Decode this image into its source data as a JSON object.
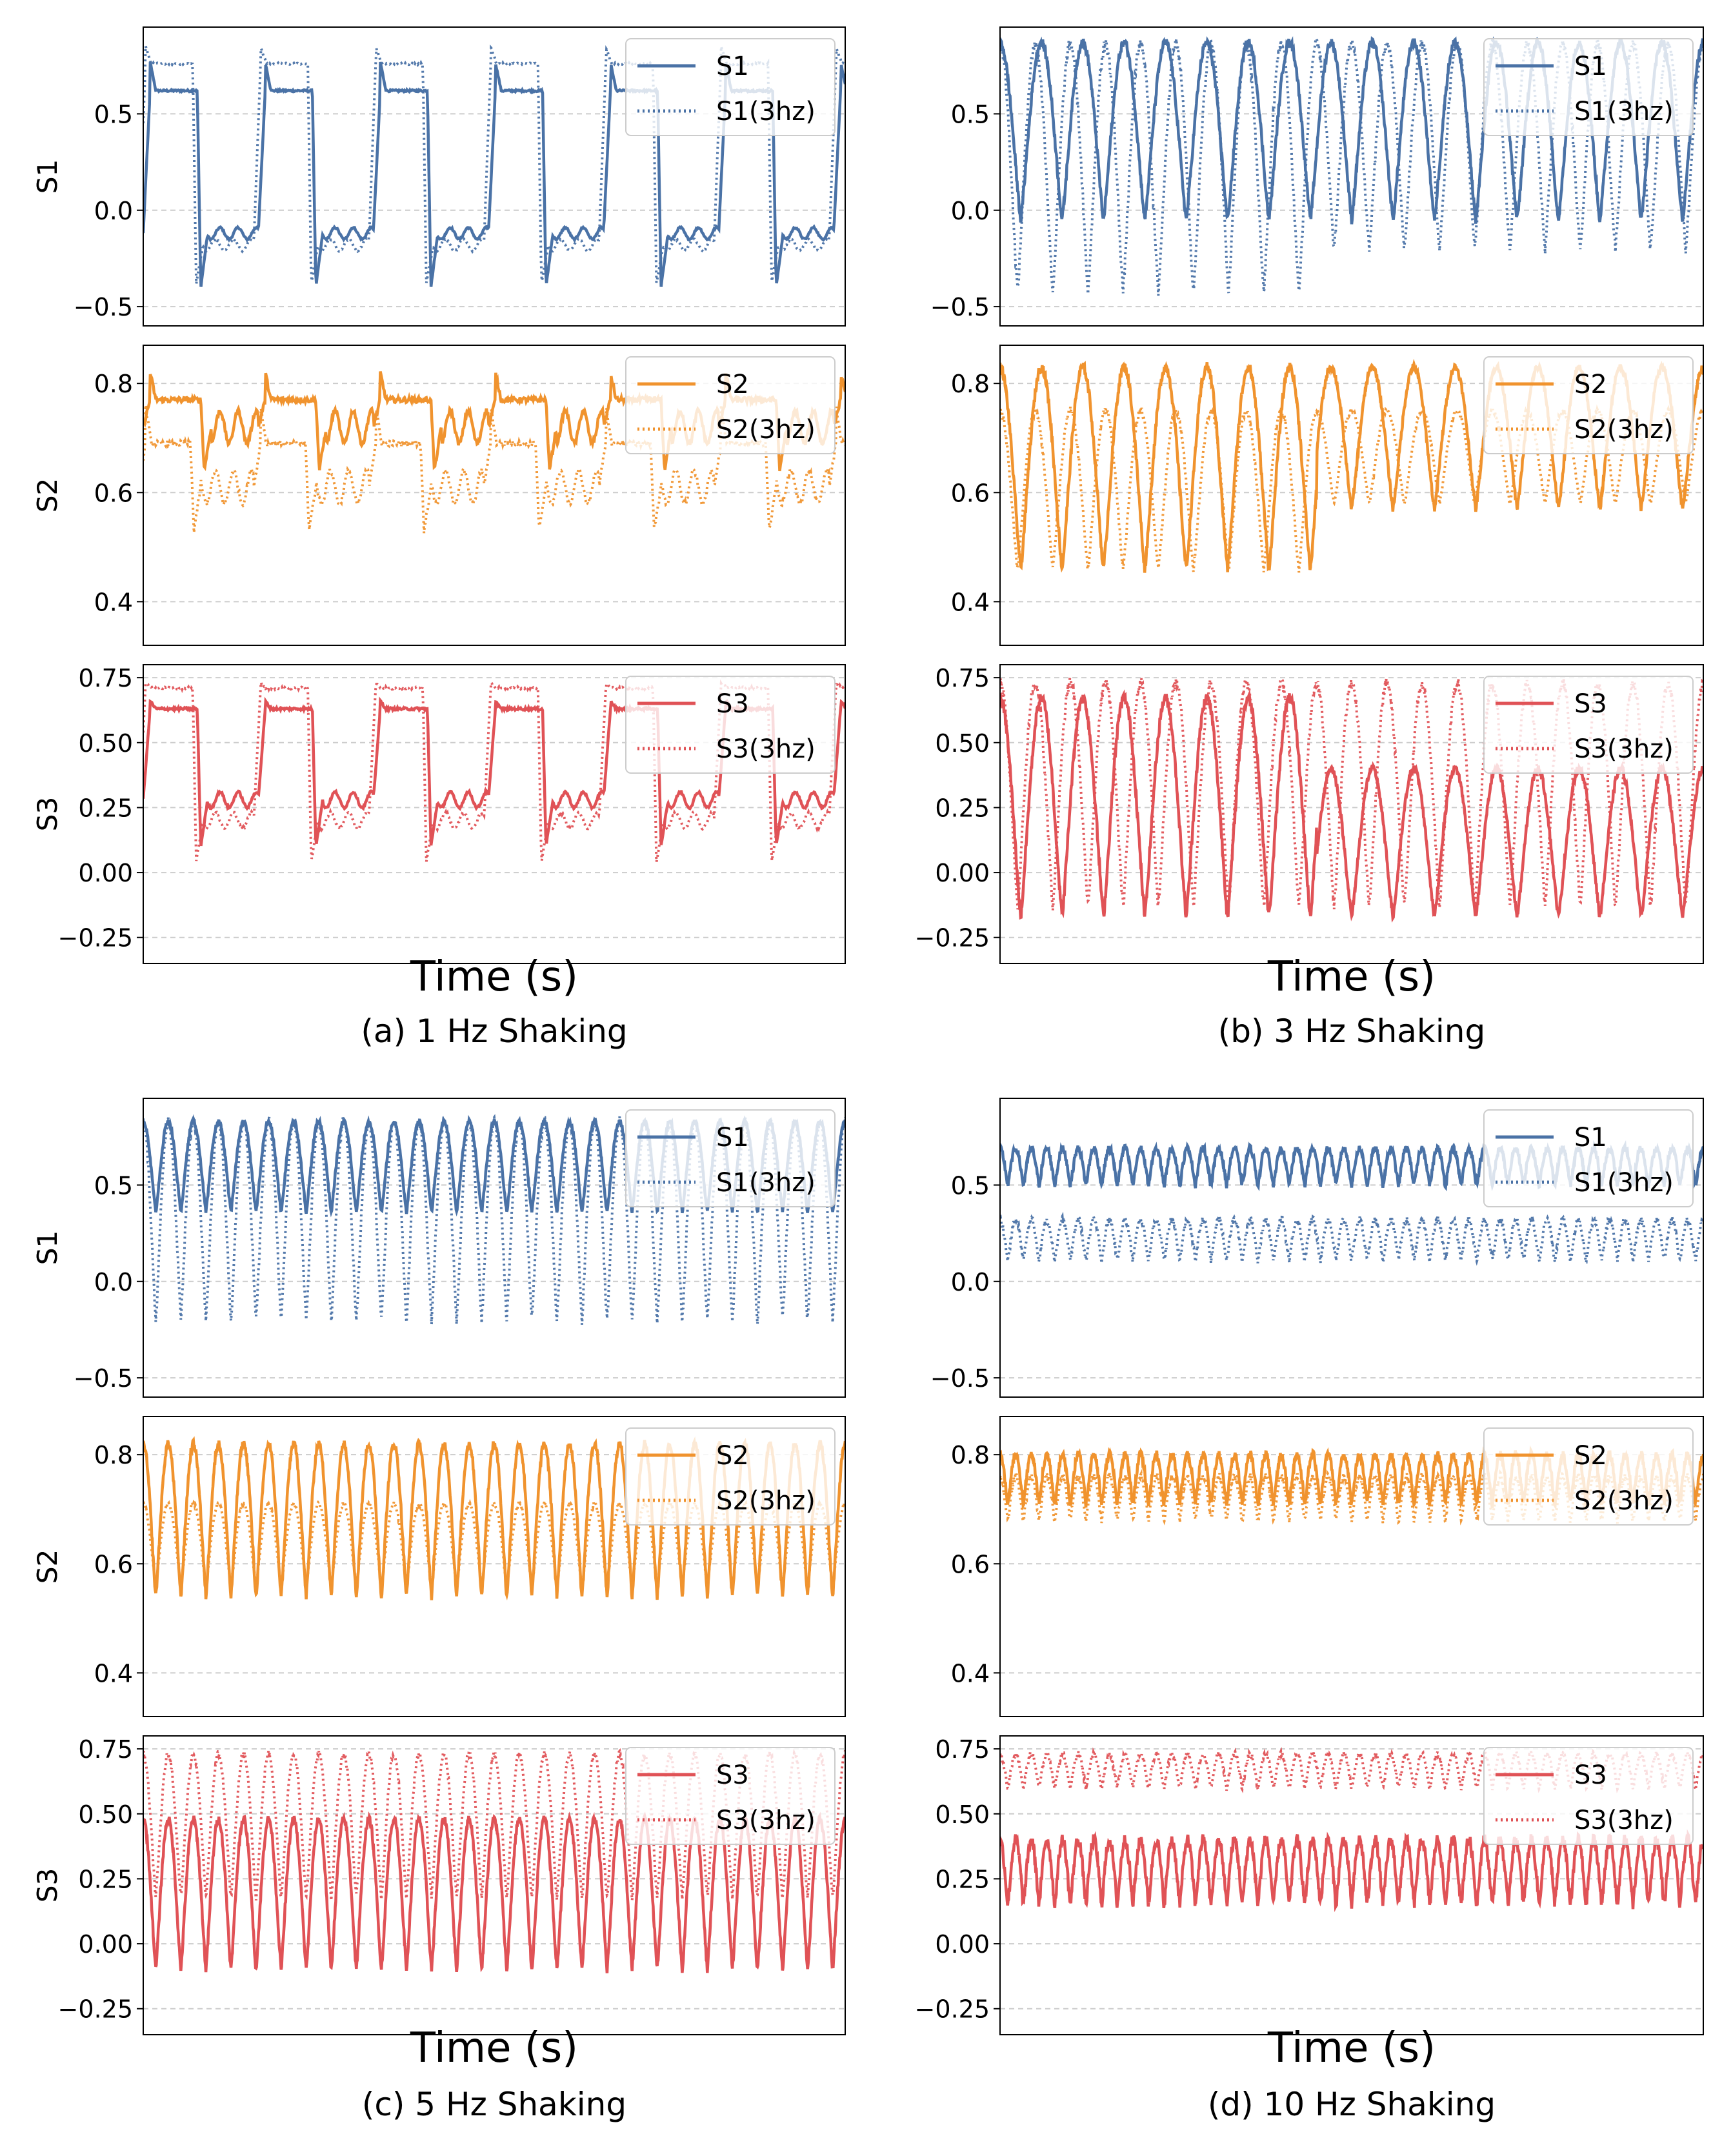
{
  "figure": {
    "xlabel": "Time (s)",
    "panels": [
      {
        "caption": "(a) 1 Hz Shaking"
      },
      {
        "caption": "(b) 3 Hz Shaking"
      },
      {
        "caption": "(c) 5 Hz Shaking"
      },
      {
        "caption": "(d) 10 Hz Shaking"
      }
    ]
  },
  "colors": {
    "S1": "#4a72a6",
    "S2": "#f0932e",
    "S3": "#e05256",
    "grid": "#cccccc"
  },
  "chart_data": [
    {
      "type": "line",
      "title": "(a) 1 Hz Shaking",
      "xlabel": "Time (s)",
      "shaking_hz": 1,
      "subplots": [
        {
          "ylabel": "S1",
          "ylim": [
            -0.6,
            0.95
          ],
          "yticks": [
            -0.5,
            0.0,
            0.5
          ],
          "ytick_labels": [
            "−0.5",
            "0.0",
            "0.5"
          ],
          "series": [
            {
              "name": "S1",
              "style": "solid",
              "cycles": 6.1,
              "min": -0.4,
              "max": 0.77,
              "mean_hi": 0.62,
              "mean_lo": -0.12,
              "duty": 0.47
            },
            {
              "name": "S1(3hz)",
              "style": "dotted",
              "cycles": 6.1,
              "min": -0.38,
              "max": 0.85,
              "mean_hi": 0.76,
              "mean_lo": -0.18,
              "duty": 0.47,
              "phase": 0.04
            }
          ]
        },
        {
          "ylabel": "S2",
          "ylim": [
            0.32,
            0.87
          ],
          "yticks": [
            0.4,
            0.6,
            0.8
          ],
          "ytick_labels": [
            "0.4",
            "0.6",
            "0.8"
          ],
          "series": [
            {
              "name": "S2",
              "style": "solid",
              "cycles": 6.1,
              "min": 0.64,
              "max": 0.82,
              "mean_hi": 0.77,
              "mean_lo": 0.72,
              "duty": 0.5
            },
            {
              "name": "S2(3hz)",
              "style": "dotted",
              "cycles": 6.1,
              "min": 0.53,
              "max": 0.76,
              "mean_hi": 0.69,
              "mean_lo": 0.61,
              "duty": 0.45,
              "phase": 0.04
            }
          ]
        },
        {
          "ylabel": "S3",
          "ylim": [
            -0.35,
            0.8
          ],
          "yticks": [
            -0.25,
            0.0,
            0.25,
            0.5,
            0.75
          ],
          "ytick_labels": [
            "−0.25",
            "0.00",
            "0.25",
            "0.50",
            "0.75"
          ],
          "series": [
            {
              "name": "S3",
              "style": "solid",
              "cycles": 6.1,
              "min": 0.1,
              "max": 0.66,
              "mean_hi": 0.63,
              "mean_lo": 0.28,
              "duty": 0.47
            },
            {
              "name": "S3(3hz)",
              "style": "dotted",
              "cycles": 6.1,
              "min": 0.04,
              "max": 0.73,
              "mean_hi": 0.71,
              "mean_lo": 0.2,
              "duty": 0.47,
              "phase": 0.04
            }
          ]
        }
      ]
    },
    {
      "type": "line",
      "title": "(b) 3 Hz Shaking",
      "xlabel": "Time (s)",
      "shaking_hz": 3,
      "subplots": [
        {
          "ylabel": "S1",
          "ylim": [
            -0.6,
            0.95
          ],
          "yticks": [
            -0.5,
            0.0,
            0.5
          ],
          "ytick_labels": [
            "−0.5",
            "0.0",
            "0.5"
          ],
          "series": [
            {
              "name": "S1",
              "style": "solid",
              "cycles": 17,
              "min": -0.05,
              "max": 0.87
            },
            {
              "name": "S1(3hz)",
              "style": "dotted",
              "cycles": 20,
              "min": -0.42,
              "max": 0.86,
              "later_min": -0.2
            }
          ]
        },
        {
          "ylabel": "S2",
          "ylim": [
            0.32,
            0.87
          ],
          "yticks": [
            0.4,
            0.6,
            0.8
          ],
          "ytick_labels": [
            "0.4",
            "0.6",
            "0.8"
          ],
          "series": [
            {
              "name": "S2",
              "style": "solid",
              "cycles": 17,
              "min": 0.46,
              "max": 0.83,
              "later_min": 0.57
            },
            {
              "name": "S2(3hz)",
              "style": "dotted",
              "cycles": 20,
              "min": 0.46,
              "max": 0.75,
              "later_min": 0.58
            }
          ]
        },
        {
          "ylabel": "S3",
          "ylim": [
            -0.35,
            0.8
          ],
          "yticks": [
            -0.25,
            0.0,
            0.25,
            0.5,
            0.75
          ],
          "ytick_labels": [
            "−0.25",
            "0.00",
            "0.25",
            "0.50",
            "0.75"
          ],
          "series": [
            {
              "name": "S3",
              "style": "solid",
              "cycles": 17,
              "min": -0.17,
              "max": 0.67,
              "later_max": 0.4
            },
            {
              "name": "S3(3hz)",
              "style": "dotted",
              "cycles": 20,
              "min": -0.13,
              "max": 0.73
            }
          ]
        }
      ]
    },
    {
      "type": "line",
      "title": "(c) 5 Hz Shaking",
      "xlabel": "Time (s)",
      "shaking_hz": 5,
      "subplots": [
        {
          "ylabel": "S1",
          "ylim": [
            -0.6,
            0.95
          ],
          "yticks": [
            -0.5,
            0.0,
            0.5
          ],
          "ytick_labels": [
            "−0.5",
            "0.0",
            "0.5"
          ],
          "series": [
            {
              "name": "S1",
              "style": "solid",
              "cycles": 28,
              "min": 0.36,
              "max": 0.83
            },
            {
              "name": "S1(3hz)",
              "style": "dotted",
              "cycles": 28,
              "min": -0.2,
              "max": 0.83
            }
          ]
        },
        {
          "ylabel": "S2",
          "ylim": [
            0.32,
            0.87
          ],
          "yticks": [
            0.4,
            0.6,
            0.8
          ],
          "ytick_labels": [
            "0.4",
            "0.6",
            "0.8"
          ],
          "series": [
            {
              "name": "S2",
              "style": "solid",
              "cycles": 28,
              "min": 0.54,
              "max": 0.82
            },
            {
              "name": "S2(3hz)",
              "style": "dotted",
              "cycles": 28,
              "min": 0.56,
              "max": 0.71
            }
          ]
        },
        {
          "ylabel": "S3",
          "ylim": [
            -0.35,
            0.8
          ],
          "yticks": [
            -0.25,
            0.0,
            0.25,
            0.5,
            0.75
          ],
          "ytick_labels": [
            "−0.25",
            "0.00",
            "0.25",
            "0.50",
            "0.75"
          ],
          "series": [
            {
              "name": "S3",
              "style": "solid",
              "cycles": 28,
              "min": -0.1,
              "max": 0.48
            },
            {
              "name": "S3(3hz)",
              "style": "dotted",
              "cycles": 28,
              "min": 0.18,
              "max": 0.73
            }
          ]
        }
      ]
    },
    {
      "type": "line",
      "title": "(d) 10 Hz Shaking",
      "xlabel": "Time (s)",
      "shaking_hz": 10,
      "subplots": [
        {
          "ylabel": "S1",
          "ylim": [
            -0.6,
            0.95
          ],
          "yticks": [
            -0.5,
            0.0,
            0.5
          ],
          "ytick_labels": [
            "−0.5",
            "0.0",
            "0.5"
          ],
          "series": [
            {
              "name": "S1",
              "style": "solid",
              "cycles": 45,
              "min": 0.5,
              "max": 0.69
            },
            {
              "name": "S1(3hz)",
              "style": "dotted",
              "cycles": 45,
              "min": 0.11,
              "max": 0.32
            }
          ]
        },
        {
          "ylabel": "S2",
          "ylim": [
            0.32,
            0.87
          ],
          "yticks": [
            0.4,
            0.6,
            0.8
          ],
          "ytick_labels": [
            "0.4",
            "0.6",
            "0.8"
          ],
          "series": [
            {
              "name": "S2",
              "style": "solid",
              "cycles": 45,
              "min": 0.71,
              "max": 0.8
            },
            {
              "name": "S2(3hz)",
              "style": "dotted",
              "cycles": 45,
              "min": 0.68,
              "max": 0.76
            }
          ]
        },
        {
          "ylabel": "S3",
          "ylim": [
            -0.35,
            0.8
          ],
          "yticks": [
            -0.25,
            0.0,
            0.25,
            0.5,
            0.75
          ],
          "ytick_labels": [
            "−0.25",
            "0.00",
            "0.25",
            "0.50",
            "0.75"
          ],
          "series": [
            {
              "name": "S3",
              "style": "solid",
              "cycles": 45,
              "min": 0.15,
              "max": 0.4
            },
            {
              "name": "S3(3hz)",
              "style": "dotted",
              "cycles": 45,
              "min": 0.6,
              "max": 0.73
            }
          ]
        }
      ]
    }
  ]
}
